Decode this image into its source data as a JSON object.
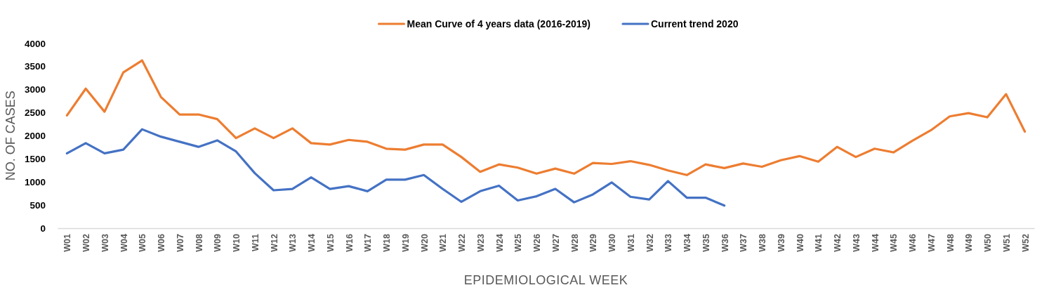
{
  "chart_data": {
    "type": "line",
    "xlabel": "EPIDEMIOLOGICAL WEEK",
    "ylabel": "NO. OF CASES",
    "categories": [
      "W01",
      "W02",
      "W03",
      "W04",
      "W05",
      "W06",
      "W07",
      "W08",
      "W09",
      "W10",
      "W11",
      "W12",
      "W13",
      "W14",
      "W15",
      "W16",
      "W17",
      "W18",
      "W19",
      "W20",
      "W21",
      "W22",
      "W23",
      "W24",
      "W25",
      "W26",
      "W27",
      "W28",
      "W29",
      "W30",
      "W31",
      "W32",
      "W33",
      "W34",
      "W35",
      "W36",
      "W37",
      "W38",
      "W39",
      "W40",
      "W41",
      "W42",
      "W43",
      "W44",
      "W45",
      "W46",
      "W47",
      "W48",
      "W49",
      "W50",
      "W51",
      "W52"
    ],
    "series": [
      {
        "name": "Mean Curve of 4 years data (2016-2019)",
        "color": "#ed7d31",
        "values": [
          2440,
          3020,
          2520,
          3370,
          3630,
          2840,
          2460,
          2460,
          2360,
          1950,
          2160,
          1950,
          2160,
          1840,
          1810,
          1910,
          1870,
          1720,
          1700,
          1810,
          1810,
          1540,
          1220,
          1380,
          1310,
          1180,
          1290,
          1180,
          1410,
          1390,
          1450,
          1370,
          1250,
          1150,
          1380,
          1300,
          1400,
          1330,
          1470,
          1560,
          1440,
          1760,
          1540,
          1720,
          1640,
          1890,
          2120,
          2420,
          2490,
          2400,
          2900,
          2090
        ]
      },
      {
        "name": "Current trend 2020",
        "color": "#4472c4",
        "values": [
          1620,
          1840,
          1620,
          1700,
          2140,
          1980,
          1870,
          1760,
          1900,
          1660,
          1190,
          820,
          850,
          1100,
          850,
          910,
          800,
          1050,
          1050,
          1150,
          850,
          570,
          800,
          920,
          600,
          690,
          850,
          560,
          730,
          990,
          680,
          620,
          1020,
          660,
          660,
          490,
          null,
          null,
          null,
          null,
          null,
          null,
          null,
          null,
          null,
          null,
          null,
          null,
          null,
          null,
          null,
          null
        ]
      }
    ],
    "ylim": [
      0,
      4000
    ],
    "yticks": [
      0,
      500,
      1000,
      1500,
      2000,
      2500,
      3000,
      3500,
      4000
    ],
    "legend": "top",
    "line_style": "solid"
  }
}
